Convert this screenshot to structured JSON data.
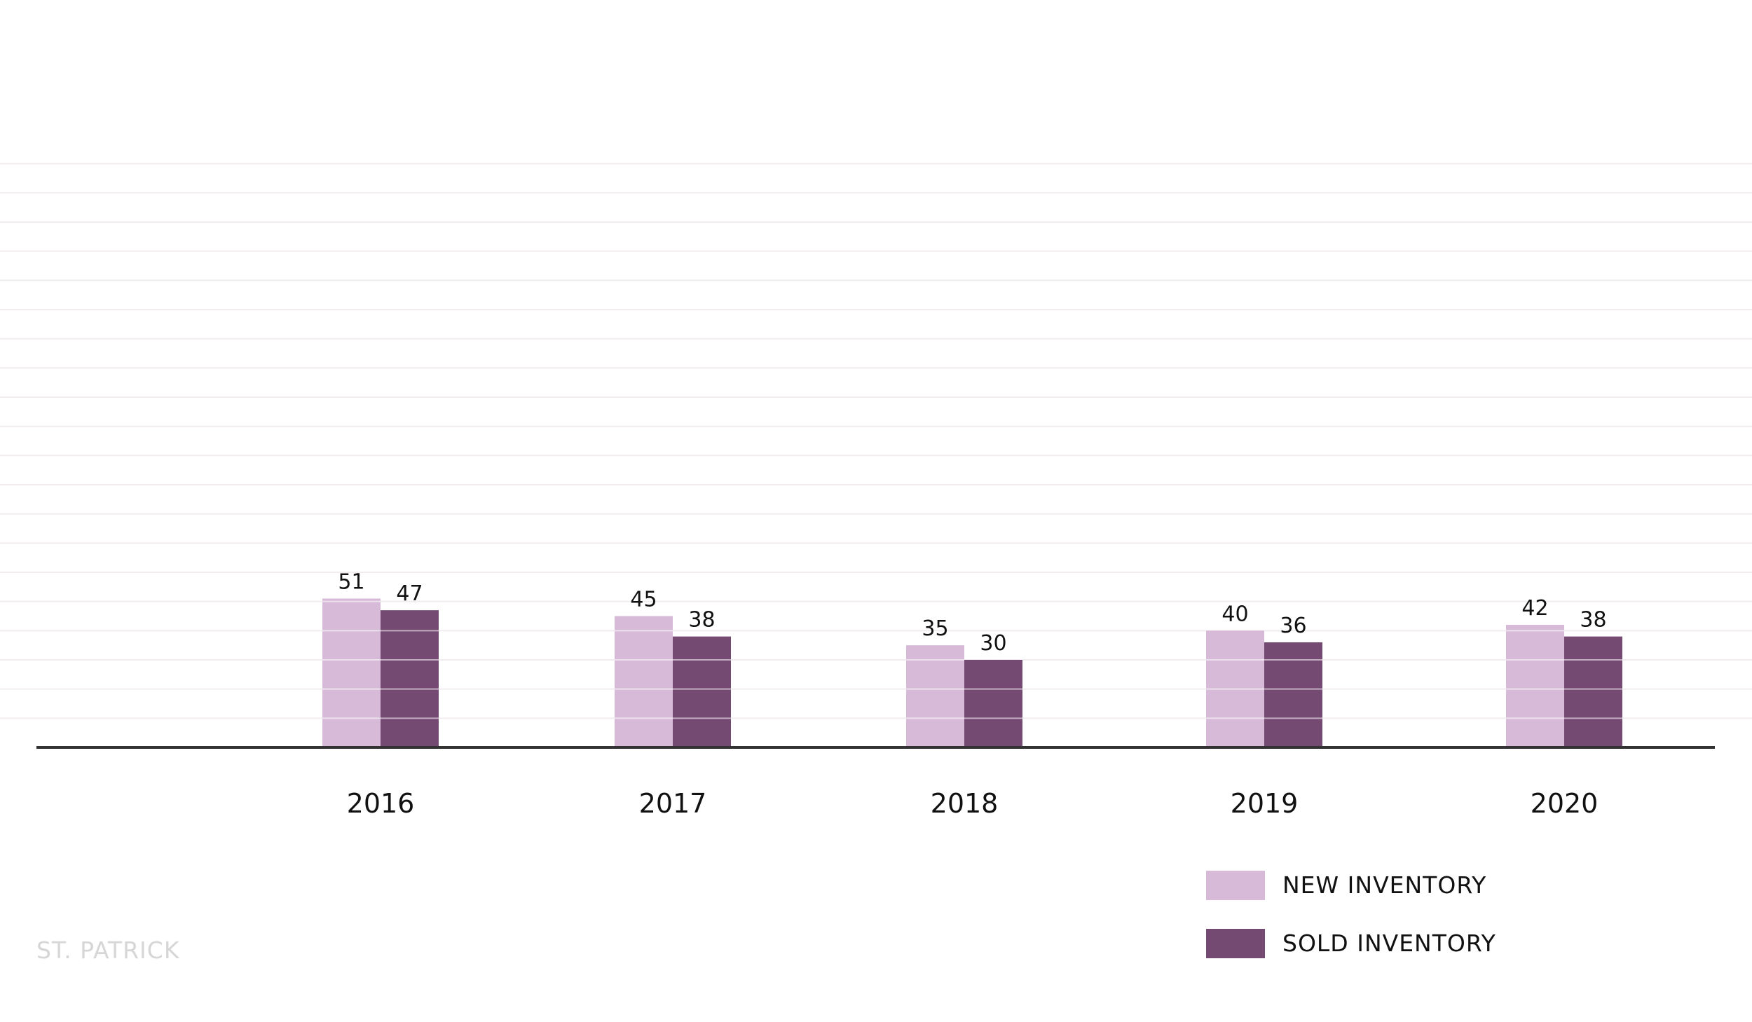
{
  "chart_data": {
    "type": "bar",
    "categories": [
      "2016",
      "2017",
      "2018",
      "2019",
      "2020"
    ],
    "series": [
      {
        "name": "NEW INVENTORY",
        "values": [
          51,
          45,
          35,
          40,
          42
        ],
        "color": "#d7bad8"
      },
      {
        "name": "SOLD INVENTORY",
        "values": [
          47,
          38,
          30,
          36,
          38
        ],
        "color": "#744a73"
      }
    ],
    "title": "",
    "xlabel": "",
    "ylabel": "",
    "ylim": [
      0,
      200
    ],
    "grid": true,
    "legend_position": "bottom-right"
  },
  "footer": {
    "watermark": "ST. PATRICK"
  },
  "colors": {
    "axis": "#333333",
    "grid": "#f0ecef",
    "text": "#111111",
    "watermark": "#d6d6d6"
  }
}
